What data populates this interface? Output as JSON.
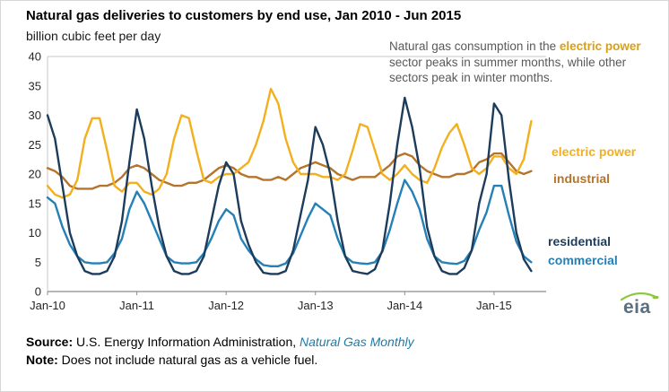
{
  "title": "Natural gas deliveries to customers by end use, Jan 2010 - Jun 2015",
  "subtitle": "billion cubic feet per day",
  "annotation": {
    "pre": "Natural gas consumption in the ",
    "highlight": "electric power",
    "post": " sector peaks in summer months, while other sectors peak in winter months."
  },
  "series_labels": [
    "electric power",
    "industrial",
    "residential",
    "commercial"
  ],
  "footer": {
    "source_label": "Source:",
    "source_text": " U.S. Energy Information Administration, ",
    "source_link": "Natural Gas Monthly",
    "note_label": "Note:",
    "note_text": " Does not include natural gas as a vehicle fuel."
  },
  "logo": {
    "text": "eia"
  },
  "colors": {
    "electric_power": "#f2b01e",
    "industrial": "#b5742c",
    "residential": "#1d3c5c",
    "commercial": "#2580b6",
    "annotation_highlight": "#d9a014",
    "axis": "#8c8c8c",
    "frame": "#c9c9c9",
    "source_link": "#1f7aa6"
  },
  "chart_data": {
    "type": "line",
    "title": "Natural gas deliveries to customers by end use, Jan 2010 - Jun 2015",
    "ylabel": "billion cubic feet per day",
    "x_unit": "month",
    "x_start": "Jan 2010",
    "x_end": "Jun 2015",
    "ylim": [
      0,
      40
    ],
    "yticks": [
      0,
      5,
      10,
      15,
      20,
      25,
      30,
      35,
      40
    ],
    "xticks": [
      0,
      12,
      24,
      36,
      48,
      60
    ],
    "xtick_labels": [
      "Jan-10",
      "Jan-11",
      "Jan-12",
      "Jan-13",
      "Jan-14",
      "Jan-15"
    ],
    "grid": false,
    "legend_position": "right-of-plot",
    "series": [
      {
        "name": "electric power",
        "color": "#f2b01e",
        "values": [
          18,
          16.5,
          16,
          16.5,
          19,
          26,
          29.5,
          29.5,
          24,
          18,
          17,
          18.5,
          18.5,
          17,
          16.5,
          17.5,
          20,
          26,
          30,
          29.5,
          24,
          19,
          18.5,
          19.5,
          20,
          20,
          21,
          22,
          25,
          29,
          34.5,
          32,
          26,
          22,
          20,
          20,
          20,
          19.5,
          19.5,
          19,
          20,
          24,
          28.5,
          28,
          24,
          20,
          19,
          20,
          21.5,
          20,
          19,
          18.5,
          21,
          24.5,
          27,
          28.5,
          25,
          21,
          20,
          21,
          23,
          23,
          21,
          20,
          22.5,
          29
        ]
      },
      {
        "name": "industrial",
        "color": "#b5742c",
        "values": [
          21,
          20.5,
          19.5,
          18,
          17.5,
          17.5,
          17.5,
          18,
          18,
          18.5,
          19.5,
          21,
          21.5,
          21,
          20,
          19,
          18.5,
          18,
          18,
          18.5,
          18.5,
          19,
          20,
          21,
          21.5,
          21,
          20,
          19.5,
          19.5,
          19,
          19,
          19.5,
          19,
          20,
          21,
          21.5,
          22,
          21.5,
          21,
          20,
          19.5,
          19,
          19.5,
          19.5,
          19.5,
          20.5,
          21.5,
          23,
          23.5,
          23,
          21.5,
          20.5,
          20,
          19.5,
          19.5,
          20,
          20,
          20.5,
          22,
          22.5,
          23.5,
          23.5,
          22,
          20.5,
          20,
          20.5
        ]
      },
      {
        "name": "residential",
        "color": "#1d3c5c",
        "values": [
          30,
          26,
          18,
          10,
          6,
          3.5,
          3,
          3,
          3.5,
          6,
          12,
          22,
          31,
          26,
          18,
          11,
          6,
          3.5,
          3,
          3,
          3.5,
          6,
          12,
          18,
          22,
          20,
          12,
          8,
          5,
          3.2,
          3,
          3,
          3.5,
          7,
          13,
          19,
          28,
          25,
          20,
          12,
          6,
          3.5,
          3.2,
          3,
          3.8,
          7,
          15,
          25,
          33,
          28,
          21,
          11,
          6,
          3.5,
          3,
          3,
          4,
          7,
          15,
          20,
          32,
          30,
          19,
          10,
          5.5,
          3.5
        ]
      },
      {
        "name": "commercial",
        "color": "#2580b6",
        "values": [
          16,
          15,
          11,
          8,
          6,
          5,
          4.8,
          4.8,
          5,
          6.5,
          9,
          14,
          17,
          15,
          12,
          9,
          6,
          5,
          4.8,
          4.8,
          5,
          6.5,
          9,
          12,
          14,
          13,
          9,
          7,
          5.5,
          4.5,
          4.3,
          4.3,
          4.8,
          6.5,
          9.5,
          12.5,
          15,
          14,
          13,
          9,
          6,
          5,
          4.8,
          4.7,
          5,
          6.8,
          10.5,
          15,
          19,
          17,
          14,
          9,
          6,
          5,
          4.8,
          4.7,
          5.2,
          7,
          10.5,
          13.5,
          18,
          18,
          13,
          8.5,
          6,
          5
        ]
      }
    ]
  }
}
